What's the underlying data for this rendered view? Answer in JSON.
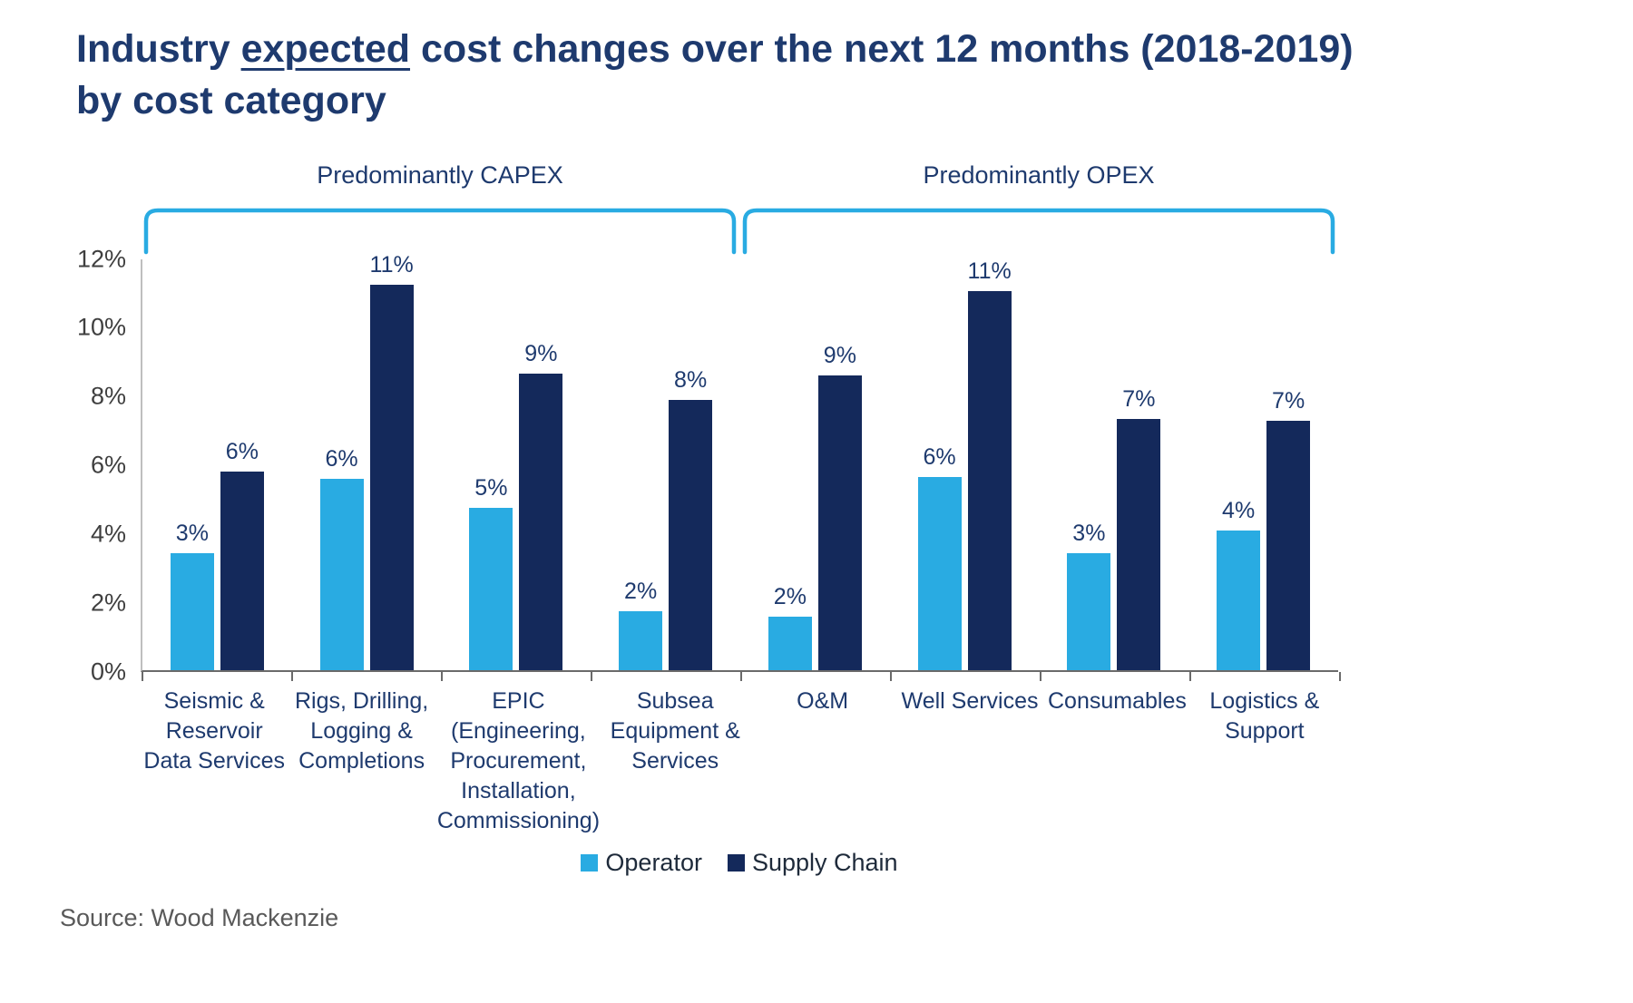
{
  "theme": {
    "navy": "#1E3A6E",
    "light_blue": "#29ABE2",
    "dark_blue": "#14295B",
    "gray": "#595959"
  },
  "page": {
    "title_parts": {
      "prefix": "Industry ",
      "underlined": "expected",
      "suffix": " cost changes over the next 12 months (2018-2019) by cost category"
    }
  },
  "chart_data": {
    "type": "bar",
    "title": "Industry expected cost changes over the next 12 months (2018-2019) by cost category",
    "source": "Source: Wood Mackenzie",
    "categories": [
      "Seismic & Reservoir Data Services",
      "Rigs, Drilling, Logging & Completions",
      "EPIC (Engineering, Procurement, Installation, Commissioning)",
      "Subsea Equipment & Services",
      "O&M",
      "Well Services",
      "Consumables",
      "Logistics & Support"
    ],
    "series": [
      {
        "name": "Operator",
        "color": "#29ABE2",
        "values": [
          3.4,
          5.55,
          4.7,
          1.7,
          1.55,
          5.6,
          3.4,
          4.05
        ],
        "labels": [
          "3%",
          "6%",
          "5%",
          "2%",
          "2%",
          "6%",
          "3%",
          "4%"
        ]
      },
      {
        "name": "Supply Chain",
        "color": "#14295B",
        "values": [
          5.75,
          11.2,
          8.6,
          7.85,
          8.55,
          11.0,
          7.3,
          7.25
        ],
        "labels": [
          "6%",
          "11%",
          "9%",
          "8%",
          "9%",
          "11%",
          "7%",
          "7%"
        ]
      }
    ],
    "groups": [
      {
        "label": "Predominantly CAPEX",
        "span": [
          0,
          3
        ]
      },
      {
        "label": "Predominantly OPEX",
        "span": [
          4,
          7
        ]
      }
    ],
    "annotation_color": "#29ABE2",
    "y_ticks": [
      "0%",
      "2%",
      "4%",
      "6%",
      "8%",
      "10%",
      "12%"
    ],
    "ylim": [
      0,
      12
    ],
    "grid": false,
    "legend_position": "bottom"
  }
}
